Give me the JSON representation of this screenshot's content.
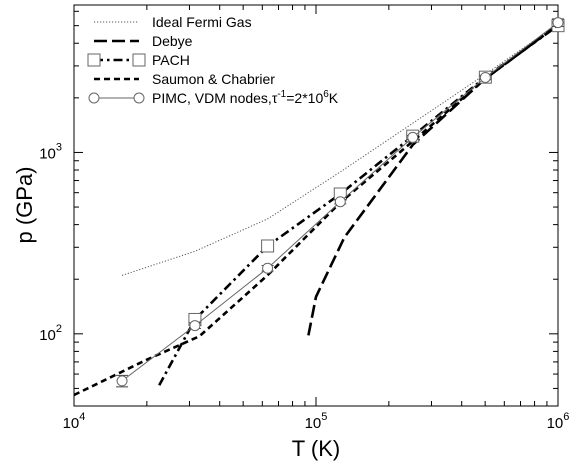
{
  "chart_data": {
    "type": "line",
    "xlabel": "T (K)",
    "ylabel": "p (GPa)",
    "xscale": "log",
    "yscale": "log",
    "xlim": [
      10000,
      1000000
    ],
    "ylim": [
      40,
      6500
    ],
    "x_ticks": [
      {
        "value": 10000,
        "base": "10",
        "exp": "4"
      },
      {
        "value": 100000,
        "base": "10",
        "exp": "5"
      },
      {
        "value": 1000000,
        "base": "10",
        "exp": "6"
      }
    ],
    "y_ticks": [
      {
        "value": 100,
        "base": "10",
        "exp": "2"
      },
      {
        "value": 1000,
        "base": "10",
        "exp": "3"
      }
    ],
    "grid": false,
    "legend_position": "top-left",
    "series": [
      {
        "name": "Ideal Fermi Gas",
        "style": "dotted",
        "color": "#555555",
        "x": [
          15800,
          31600,
          63100,
          125900,
          251200,
          501200,
          1000000
        ],
        "y": [
          210,
          285,
          430,
          780,
          1450,
          2700,
          5100
        ]
      },
      {
        "name": "Debye",
        "style": "long-dash",
        "color": "#000000",
        "x": [
          93000,
          100000,
          131000,
          251000,
          500000,
          1000000
        ],
        "y": [
          98,
          160,
          340,
          1100,
          2550,
          5050
        ]
      },
      {
        "name": "PACH",
        "style": "dash-dot",
        "marker": "square",
        "color": "#000000",
        "x": [
          22500,
          31600,
          63100,
          126000,
          251000,
          501000,
          1000000
        ],
        "y": [
          52,
          120,
          305,
          590,
          1230,
          2600,
          5000
        ]
      },
      {
        "name": "Saumon & Chabrier",
        "style": "dashed",
        "color": "#000000",
        "x": [
          10000,
          20000,
          33000,
          63000,
          126000,
          251000,
          500000,
          1000000
        ],
        "y": [
          46,
          72,
          97,
          210,
          530,
          1150,
          2550,
          5050
        ]
      },
      {
        "name": "PIMC, VDM nodes,τ",
        "legend_suffix_sup": "-1",
        "legend_suffix": "=2*10",
        "legend_suffix_sup2": "6",
        "legend_suffix_end": "K",
        "style": "solid-thin",
        "marker": "circle",
        "color": "#666666",
        "x": [
          15800,
          31600,
          63100,
          126000,
          251000,
          501000,
          1000000
        ],
        "y": [
          55,
          111,
          230,
          535,
          1210,
          2590,
          5200
        ],
        "error": [
          4,
          4,
          8,
          15,
          30,
          70,
          250
        ]
      }
    ]
  }
}
